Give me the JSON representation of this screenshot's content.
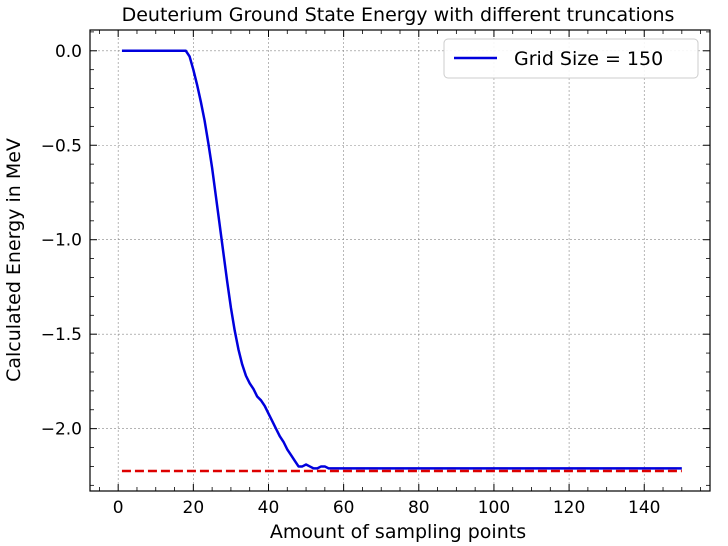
{
  "chart_data": {
    "type": "line",
    "title": "Deuterium Ground State Energy with different truncations",
    "xlabel": "Amount of sampling points",
    "ylabel": "Calculated Energy in MeV",
    "xlim": [
      -7.5,
      157.5
    ],
    "ylim": [
      -2.33,
      0.11
    ],
    "xticks": [
      0,
      20,
      40,
      60,
      80,
      100,
      120,
      140
    ],
    "xtick_labels": [
      "0",
      "20",
      "40",
      "60",
      "80",
      "100",
      "120",
      "140"
    ],
    "yticks": [
      0.0,
      -0.5,
      -1.0,
      -1.5,
      -2.0
    ],
    "ytick_labels": [
      "0.0",
      "−0.5",
      "−1.0",
      "−1.5",
      "−2.0"
    ],
    "grid": true,
    "legend_position": "top-right",
    "series": [
      {
        "name": "Grid Size = 150",
        "color": "#0000dd",
        "style": "solid",
        "x": [
          1,
          5,
          10,
          15,
          17,
          18,
          19,
          20,
          21,
          22,
          23,
          24,
          25,
          26,
          27,
          28,
          29,
          30,
          31,
          32,
          33,
          34,
          35,
          36,
          37,
          38,
          39,
          40,
          41,
          42,
          43,
          44,
          45,
          46,
          47,
          48,
          49,
          50,
          51,
          52,
          53,
          54,
          55,
          56,
          57,
          58,
          59,
          60,
          70,
          80,
          90,
          100,
          110,
          120,
          130,
          140,
          150
        ],
        "y": [
          0.0,
          0.0,
          0.0,
          0.0,
          0.0,
          0.0,
          -0.03,
          -0.1,
          -0.18,
          -0.27,
          -0.37,
          -0.49,
          -0.62,
          -0.77,
          -0.92,
          -1.07,
          -1.22,
          -1.36,
          -1.48,
          -1.58,
          -1.66,
          -1.72,
          -1.76,
          -1.79,
          -1.83,
          -1.85,
          -1.88,
          -1.92,
          -1.96,
          -2.0,
          -2.04,
          -2.07,
          -2.11,
          -2.14,
          -2.17,
          -2.2,
          -2.2,
          -2.19,
          -2.2,
          -2.21,
          -2.21,
          -2.2,
          -2.2,
          -2.21,
          -2.21,
          -2.21,
          -2.21,
          -2.21,
          -2.21,
          -2.21,
          -2.21,
          -2.21,
          -2.21,
          -2.21,
          -2.21,
          -2.21,
          -2.21
        ]
      },
      {
        "name": "",
        "color": "#dd0000",
        "style": "dashed",
        "x": [
          1,
          150
        ],
        "y": [
          -2.224,
          -2.224
        ]
      }
    ]
  }
}
